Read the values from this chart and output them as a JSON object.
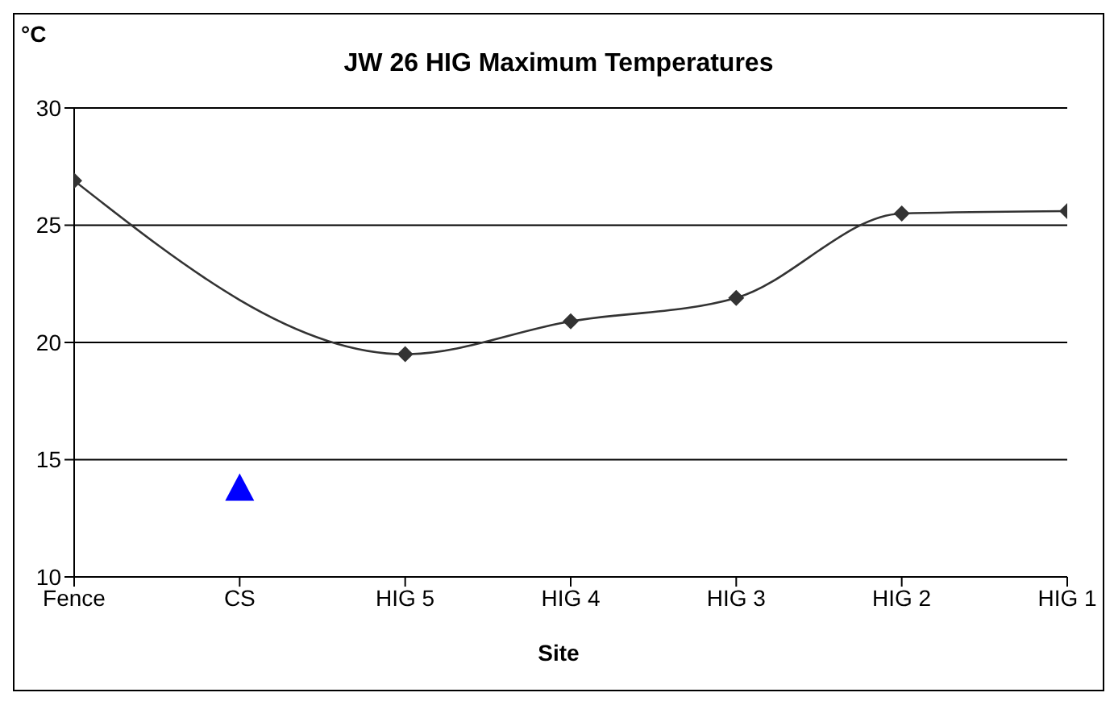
{
  "chart_data": {
    "type": "line",
    "title": "JW 26 HIG Maximum Temperatures",
    "ylabel": "°C",
    "xlabel": "Site",
    "categories": [
      "Fence",
      "CS",
      "HIG 5",
      "HIG 4",
      "HIG 3",
      "HIG 2",
      "HIG 1"
    ],
    "series": [
      {
        "color": "#333333",
        "marker": "diamond",
        "values": [
          26.9,
          null,
          19.5,
          20.9,
          21.9,
          25.5,
          25.6
        ]
      },
      {
        "type": "scatter",
        "color": "#0000ff",
        "marker": "triangle",
        "values": [
          null,
          13.8,
          null,
          null,
          null,
          null,
          null
        ]
      }
    ],
    "ylim": [
      10,
      30
    ],
    "yticks": [
      10,
      15,
      20,
      25,
      30
    ],
    "grid": "y",
    "legend": false
  }
}
